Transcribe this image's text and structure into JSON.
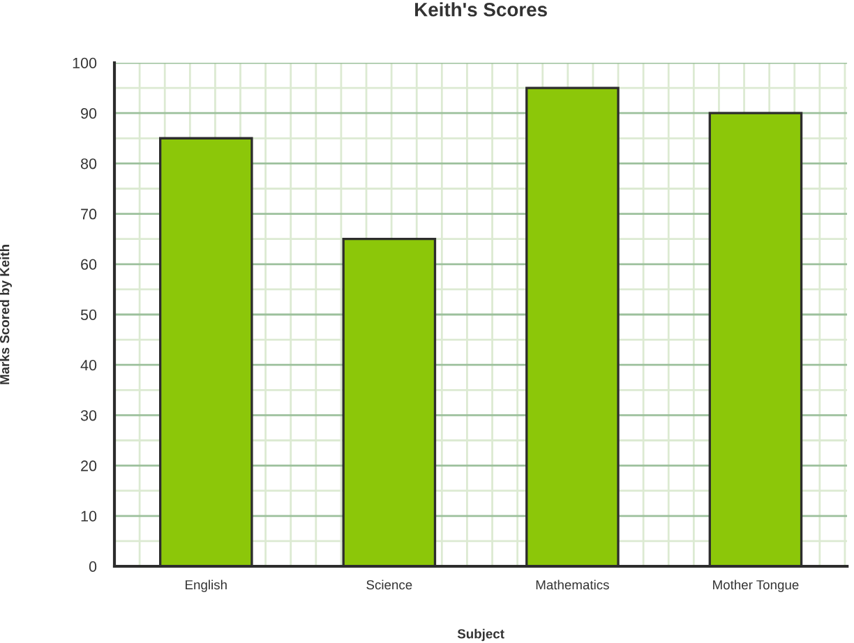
{
  "chart_data": {
    "type": "bar",
    "title": "Keith's Scores",
    "xlabel": "Subject",
    "ylabel": "Marks Scored by Keith",
    "categories": [
      "English",
      "Science",
      "Mathematics",
      "Mother Tongue"
    ],
    "values": [
      85,
      65,
      95,
      90
    ],
    "color": "#8cc709",
    "ylim": [
      0,
      100
    ],
    "yticks": [
      0,
      10,
      20,
      30,
      40,
      50,
      60,
      70,
      80,
      90,
      100
    ],
    "grid": true
  }
}
